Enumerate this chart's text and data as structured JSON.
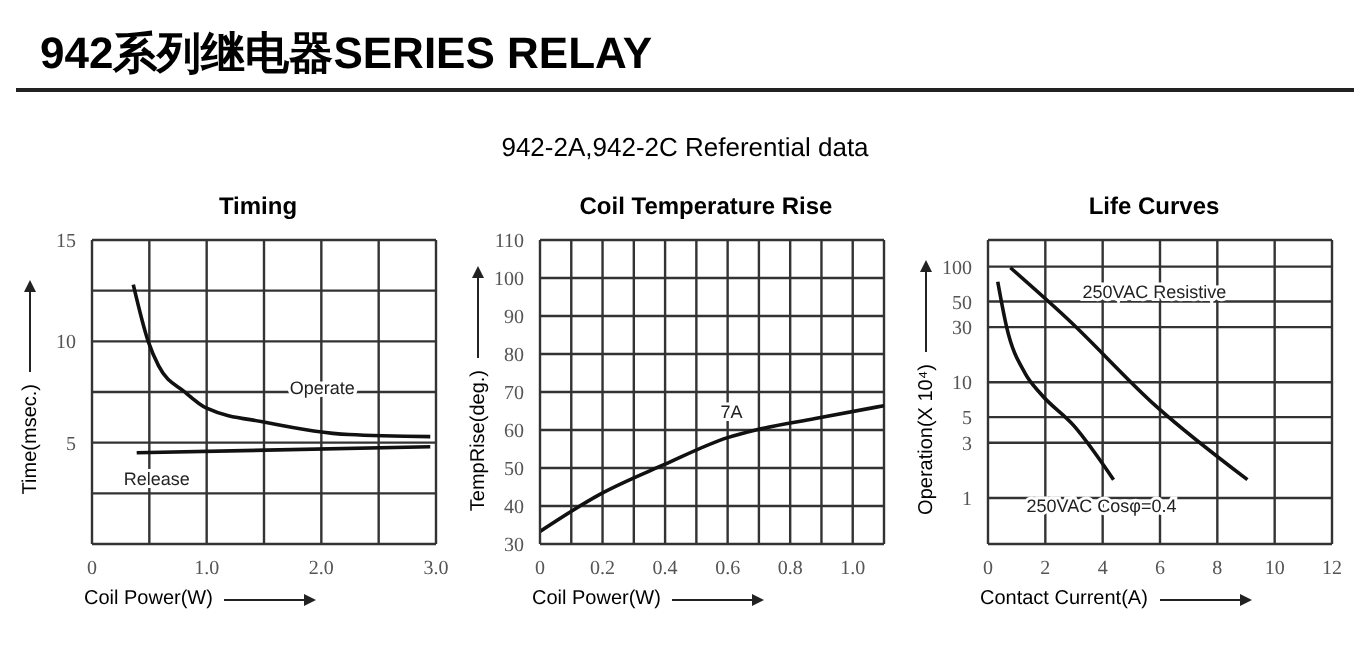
{
  "chart_data": [
    {
      "type": "other",
      "title": "942系列继电器SERIES RELAY",
      "subtitle": "942-2A,942-2C Referential data"
    },
    {
      "type": "line",
      "title": "Timing",
      "xlabel": "Coil Power(W)",
      "ylabel": "Time(msec.)",
      "xlim": [
        0,
        3
      ],
      "xticks": [
        0,
        {
          "value": 0.5,
          "label": null
        },
        {
          "value": 1,
          "label": "1.0"
        },
        {
          "value": 1.5,
          "label": null
        },
        {
          "value": 2,
          "label": "2.0"
        },
        {
          "value": 2.5,
          "label": null
        },
        {
          "value": 3,
          "label": "3.0"
        }
      ],
      "ylim": [
        0,
        15
      ],
      "yticks": [
        {
          "value": 0,
          "label": null
        },
        {
          "value": 2.5,
          "label": null
        },
        5,
        {
          "value": 7.5,
          "label": null
        },
        10,
        {
          "value": 12.5,
          "label": null
        },
        15
      ],
      "grid": true,
      "legend": false,
      "series": [
        {
          "name": "Operate",
          "color": "#111111",
          "x": [
            0.36,
            0.49,
            0.58,
            0.81,
            1.0,
            1.52,
            2.24,
            2.95
          ],
          "values": [
            12.8,
            10.0,
            8.8,
            7.5,
            6.7,
            6.0,
            5.4,
            5.3
          ]
        },
        {
          "name": "Release",
          "color": "#111111",
          "x": [
            0.39,
            2.95
          ],
          "values": [
            4.5,
            4.8
          ]
        }
      ]
    },
    {
      "type": "line",
      "title": "Coil Temperature Rise",
      "xlabel": "Coil Power(W)",
      "ylabel": "TempRise(deg.)",
      "xlim": [
        0,
        1.1
      ],
      "xticks": [
        0,
        {
          "value": 0.1,
          "label": null
        },
        0.2,
        {
          "value": 0.3,
          "label": null
        },
        0.4,
        {
          "value": 0.5,
          "label": null
        },
        0.6,
        {
          "value": 0.7,
          "label": null
        },
        0.8,
        {
          "value": 0.9,
          "label": null
        },
        {
          "value": 1,
          "label": "1.0"
        },
        {
          "value": 1.1,
          "label": null
        }
      ],
      "ylim": [
        30,
        110
      ],
      "yticks": [
        30,
        40,
        50,
        60,
        70,
        80,
        90,
        100,
        110
      ],
      "grid": true,
      "legend": false,
      "series": [
        {
          "name": "7A",
          "color": "#111111",
          "x": [
            0,
            0.19,
            0.4,
            0.6,
            0.69,
            0.88,
            1.1
          ],
          "values": [
            33.3,
            43,
            51,
            58,
            60,
            63,
            66.4
          ]
        }
      ]
    },
    {
      "type": "line",
      "title": "Life Curves",
      "xlabel": "Contact Current(A)",
      "ylabel": "Operation(X 10⁴)",
      "xlim": [
        0,
        12
      ],
      "xticks": [
        0,
        2,
        4,
        6,
        8,
        10,
        12
      ],
      "ylim": [
        0.4,
        170
      ],
      "yticks": [
        1,
        3,
        5,
        10,
        30,
        50,
        100
      ],
      "log": "y",
      "grid": true,
      "legend": false,
      "series": [
        {
          "name": "250VAC Resistive",
          "color": "#111111",
          "x": [
            0.78,
            2.74,
            5.87,
            9.05
          ],
          "values": [
            98,
            36,
            6.2,
            1.44
          ]
        },
        {
          "name": "250VAC Cosφ=0.4",
          "color": "#111111",
          "x": [
            0.34,
            0.65,
            1.3,
            1.83,
            3.0,
            4.38
          ],
          "values": [
            74,
            30,
            11.9,
            8,
            4.2,
            1.44
          ]
        }
      ]
    }
  ]
}
